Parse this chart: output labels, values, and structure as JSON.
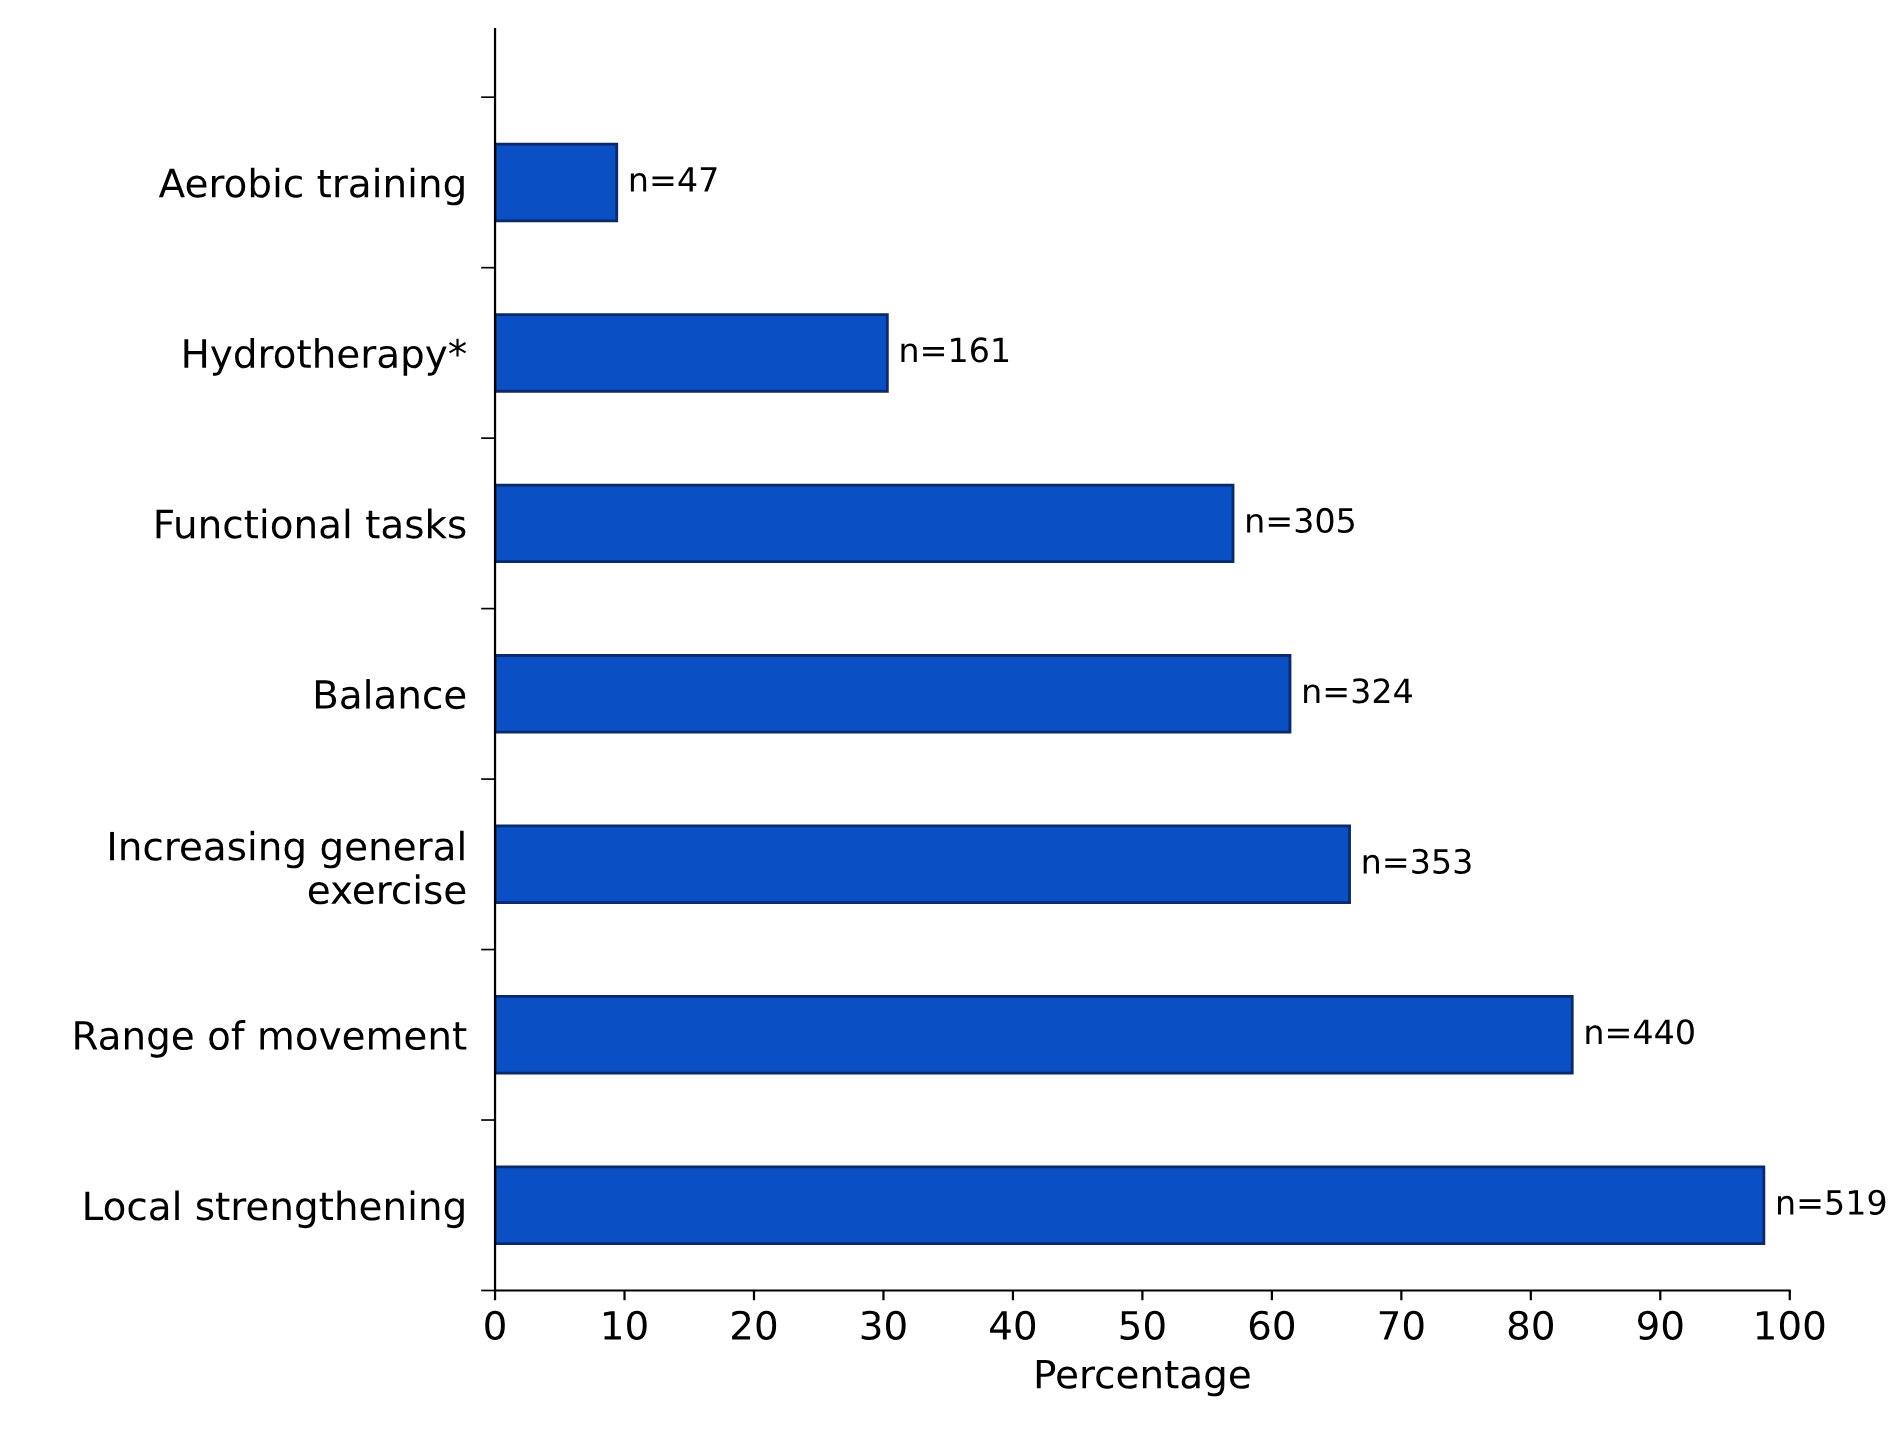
{
  "chart_data": {
    "type": "bar",
    "orientation": "horizontal",
    "xlabel": "Percentage",
    "categories": [
      "Aerobic training",
      "Hydrotherapy*",
      "Functional tasks",
      "Balance",
      "Increasing general\nexercise",
      "Range of movement",
      "Local strengthening"
    ],
    "values": [
      9.4,
      30.3,
      57,
      61.4,
      66,
      83.2,
      98
    ],
    "annotations": [
      {
        "text": "n=47",
        "x": 9.4,
        "y": "Aerobic training"
      },
      {
        "text": "n=161",
        "x": 30.3,
        "y": "Hydrotherapy*"
      },
      {
        "text": "n=305",
        "x": 57,
        "y": "Functional tasks"
      },
      {
        "text": "n=324",
        "x": 61.4,
        "y": "Balance"
      },
      {
        "text": "n=353",
        "x": 66,
        "y": "Increasing general\nexercise"
      },
      {
        "text": "n=440",
        "x": 83.2,
        "y": "Range of movement"
      },
      {
        "text": "n=519",
        "x": 98,
        "y": "Local strengthening"
      }
    ],
    "color": "#0a4fc4",
    "xlim": [
      0,
      100
    ],
    "xticks": [
      0,
      10,
      20,
      30,
      40,
      50,
      60,
      70,
      80,
      90,
      100
    ],
    "grid": false,
    "legend": false
  }
}
